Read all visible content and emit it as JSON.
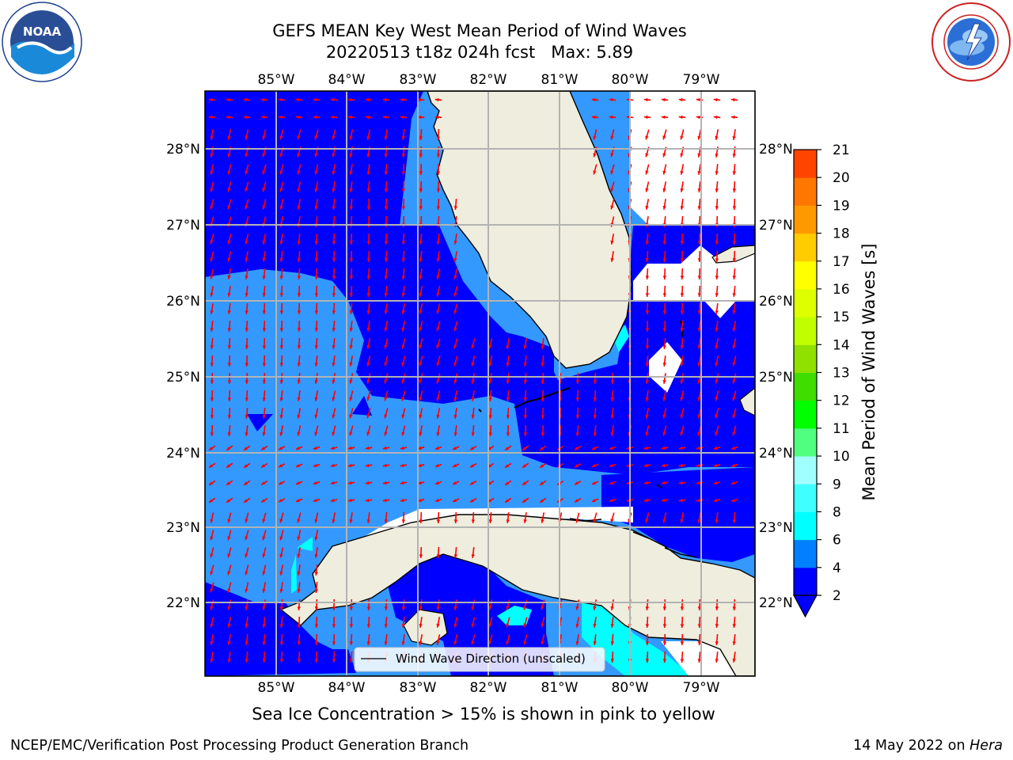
{
  "title": {
    "line1": "GEFS MEAN Key West Mean Period of Wind Waves",
    "line2": "20220513 t18z 024h fcst   Max: 5.89"
  },
  "map": {
    "lon_labels": [
      "85°W",
      "84°W",
      "83°W",
      "82°W",
      "81°W",
      "80°W",
      "79°W"
    ],
    "lat_labels": [
      "28°N",
      "27°N",
      "26°N",
      "25°N",
      "24°N",
      "23°N",
      "22°N"
    ],
    "lon_range": [
      -86.0,
      -78.25
    ],
    "lat_range": [
      21.07,
      28.8
    ],
    "colors": {
      "land": "#eeedde",
      "ocean_2_4": "#0000ff",
      "ocean_4_6": "#3399ff",
      "ocean_6_8": "#00ffff",
      "arrow": "#ff0000",
      "grid": "#b3b3b3"
    },
    "legend": {
      "label": "Wind Wave Direction (unscaled)"
    }
  },
  "colorbar": {
    "label": "Mean Period of Wind Waves [s]",
    "levels": [
      "2",
      "4",
      "6",
      "8",
      "9",
      "10",
      "11",
      "12",
      "13",
      "14",
      "15",
      "16",
      "17",
      "18",
      "19",
      "20",
      "21"
    ],
    "colors": [
      "#0000ff",
      "#0080ff",
      "#00ffff",
      "#40ffff",
      "#a0ffff",
      "#50ff80",
      "#00ff00",
      "#40dd00",
      "#90e000",
      "#c0ff00",
      "#ddff00",
      "#ffff00",
      "#ffcc00",
      "#ff9900",
      "#ff7700",
      "#ff4400",
      "#ff0000"
    ],
    "extend": "min"
  },
  "subtitle": "Sea Ice Concentration > 15% is shown in pink to yellow",
  "footer": {
    "left": "NCEP/EMC/Verification Post Processing Product Generation Branch",
    "right_date": "14 May 2022 on",
    "right_host": "Hera"
  },
  "logos": {
    "noaa_text": "NOAA",
    "noaa_ring": "NATIONAL OCEANIC AND ATMOSPHERIC ADMINISTRATION",
    "noaa_bottom": "U.S. DEPARTMENT OF COMMERCE",
    "nws_ring": "NATIONAL WEATHER SERVICE"
  }
}
